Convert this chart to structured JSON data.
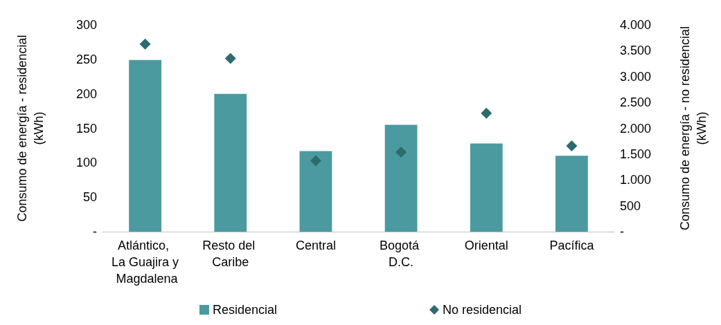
{
  "chart_data": {
    "type": "bar",
    "categories": [
      "Atlántico, La Guajira y Magdalena",
      "Resto del Caribe",
      "Central",
      "Bogotá D.C.",
      "Oriental",
      "Pacífica"
    ],
    "ylabel": "Consumo de energía - residencial (kWh)",
    "y2label": "Consumo de energía - no residencial (kWh)",
    "series": [
      {
        "name": "Residencial",
        "color": "#4a9aa0",
        "values": [
          249,
          200,
          117,
          155,
          128,
          110
        ]
      },
      {
        "name": "No residencial",
        "type": "scatter",
        "axis": "y2",
        "marker": "diamond",
        "color": "#2e6b6e",
        "values": [
          3630,
          3350,
          1370,
          1540,
          2290,
          1660
        ]
      }
    ],
    "ylim": [
      0,
      300
    ],
    "yticks": [
      {
        "value": 0,
        "label": "-"
      },
      50,
      100,
      150,
      200,
      250,
      300
    ],
    "y2lim": [
      0,
      4000
    ],
    "y2ticks": [
      {
        "value": 0,
        "label": "-"
      },
      500,
      {
        "value": 1000,
        "label": "1.000"
      },
      {
        "value": 1500,
        "label": "1.500"
      },
      {
        "value": 2000,
        "label": "2.000"
      },
      {
        "value": 2500,
        "label": "2.500"
      },
      {
        "value": 3000,
        "label": "3.000"
      },
      {
        "value": 3500,
        "label": "3.500"
      },
      {
        "value": 4000,
        "label": "4.000"
      }
    ],
    "grid": false,
    "legend": "bottom"
  }
}
